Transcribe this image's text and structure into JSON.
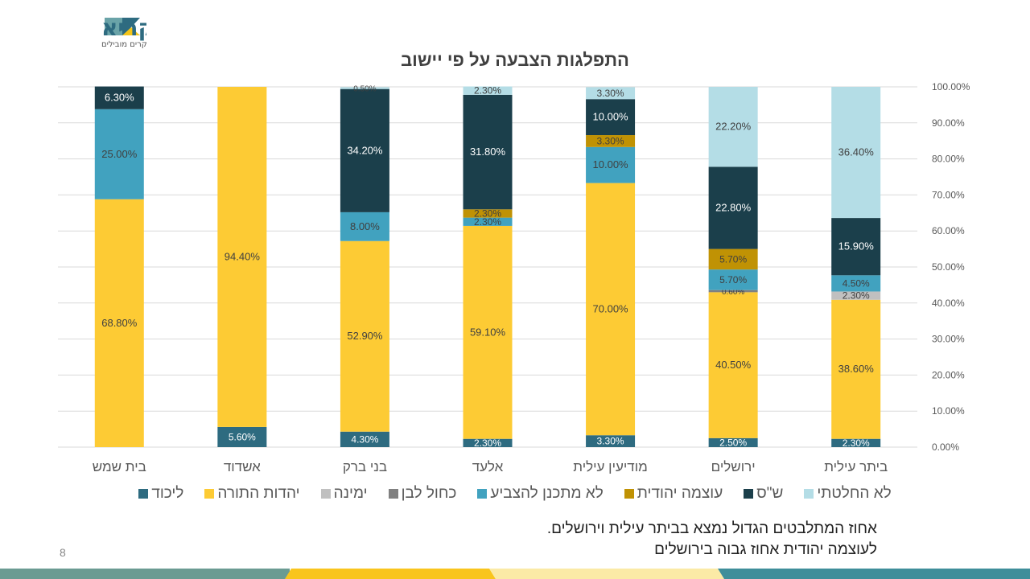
{
  "logo": {
    "name": "אסקריא",
    "tagline": "סוקרים מובילים"
  },
  "page_number": "8",
  "notes": [
    "אחוז המתלבטים הגדול נמצא בביתר עילית וירושלים.",
    "לעוצמה יהודית אחוז גבוה בירושלים"
  ],
  "chart_data": {
    "type": "bar",
    "stacked": "percent",
    "title": "התפלגות הצבעה על פי יישוב",
    "categories": [
      "בית שמש",
      "אשדוד",
      "בני ברק",
      "אלעד",
      "מודיעין עילית",
      "ירושלים",
      "ביתר עילית"
    ],
    "y_axis": {
      "position": "right",
      "ylim": [
        0,
        100
      ],
      "ticks": [
        "0.00%",
        "10.00%",
        "20.00%",
        "30.00%",
        "40.00%",
        "50.00%",
        "60.00%",
        "70.00%",
        "80.00%",
        "90.00%",
        "100.00%"
      ]
    },
    "grid": true,
    "legend": "bottom",
    "series": [
      {
        "name": "ליכוד",
        "color": "#2e6b80",
        "label_color": "#ffffff",
        "values": [
          null,
          5.6,
          4.3,
          2.3,
          3.3,
          2.5,
          2.3
        ]
      },
      {
        "name": "יהדות התורה",
        "color": "#fdcb34",
        "label_color": "#404040",
        "values": [
          68.8,
          94.4,
          52.9,
          59.1,
          70.0,
          40.5,
          38.6
        ]
      },
      {
        "name": "ימינה",
        "color": "#c0c0c0",
        "label_color": "#404040",
        "values": [
          null,
          null,
          null,
          null,
          null,
          null,
          2.3
        ]
      },
      {
        "name": "כחול לבן",
        "color": "#808080",
        "label_color": "#404040",
        "values": [
          null,
          null,
          null,
          null,
          null,
          0.6,
          null
        ]
      },
      {
        "name": "לא מתכנן להצביע",
        "color": "#41a2bf",
        "label_color": "#404040",
        "values": [
          25.0,
          null,
          8.0,
          2.3,
          10.0,
          5.7,
          4.5
        ]
      },
      {
        "name": "עוצמה יהודית",
        "color": "#c09204",
        "label_color": "#404040",
        "values": [
          null,
          null,
          null,
          2.3,
          3.3,
          5.7,
          null
        ]
      },
      {
        "name": "ש\"ס",
        "color": "#1b3f4b",
        "label_color": "#ffffff",
        "values": [
          6.3,
          null,
          34.2,
          31.8,
          10.0,
          22.8,
          15.9
        ]
      },
      {
        "name": "לא החלטתי",
        "color": "#b4dde6",
        "label_color": "#404040",
        "values": [
          null,
          null,
          0.5,
          2.3,
          3.3,
          22.2,
          36.4
        ]
      }
    ]
  }
}
